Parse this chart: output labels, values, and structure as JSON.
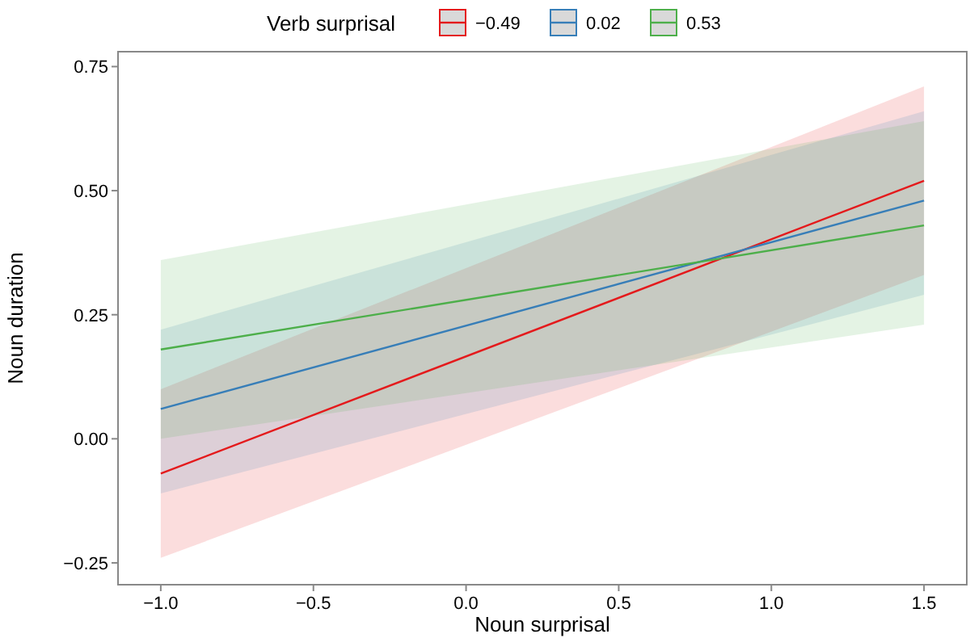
{
  "chart_data": {
    "type": "line",
    "xlabel": "Noun surprisal",
    "ylabel": "Noun duration",
    "legend_title": "Verb surprisal",
    "legend": "top",
    "grid": false,
    "x": [
      -1.0,
      1.5
    ],
    "xlim": [
      -1.14,
      1.64
    ],
    "xticks": [
      {
        "value": -1.0,
        "label": "−1.0"
      },
      {
        "value": -0.5,
        "label": "−0.5"
      },
      {
        "value": 0.0,
        "label": "0.0"
      },
      {
        "value": 0.5,
        "label": "0.5"
      },
      {
        "value": 1.0,
        "label": "1.0"
      },
      {
        "value": 1.5,
        "label": "1.5"
      }
    ],
    "ylim": [
      -0.294,
      0.78
    ],
    "yticks": [
      {
        "value": -0.25,
        "label": "−0.25"
      },
      {
        "value": 0.0,
        "label": "0.00"
      },
      {
        "value": 0.25,
        "label": "0.25"
      },
      {
        "value": 0.5,
        "label": "0.50"
      },
      {
        "value": 0.75,
        "label": "0.75"
      }
    ],
    "series": [
      {
        "name": "−0.49",
        "color": "#e41a1c",
        "values": [
          -0.07,
          0.52
        ],
        "lower": [
          -0.24,
          0.33
        ],
        "upper": [
          0.1,
          0.71
        ]
      },
      {
        "name": "0.02",
        "color": "#377eb8",
        "values": [
          0.06,
          0.48
        ],
        "lower": [
          -0.11,
          0.29
        ],
        "upper": [
          0.22,
          0.66
        ]
      },
      {
        "name": "0.53",
        "color": "#4daf4a",
        "values": [
          0.18,
          0.43
        ],
        "lower": [
          0.0,
          0.23
        ],
        "upper": [
          0.36,
          0.64
        ]
      }
    ]
  }
}
